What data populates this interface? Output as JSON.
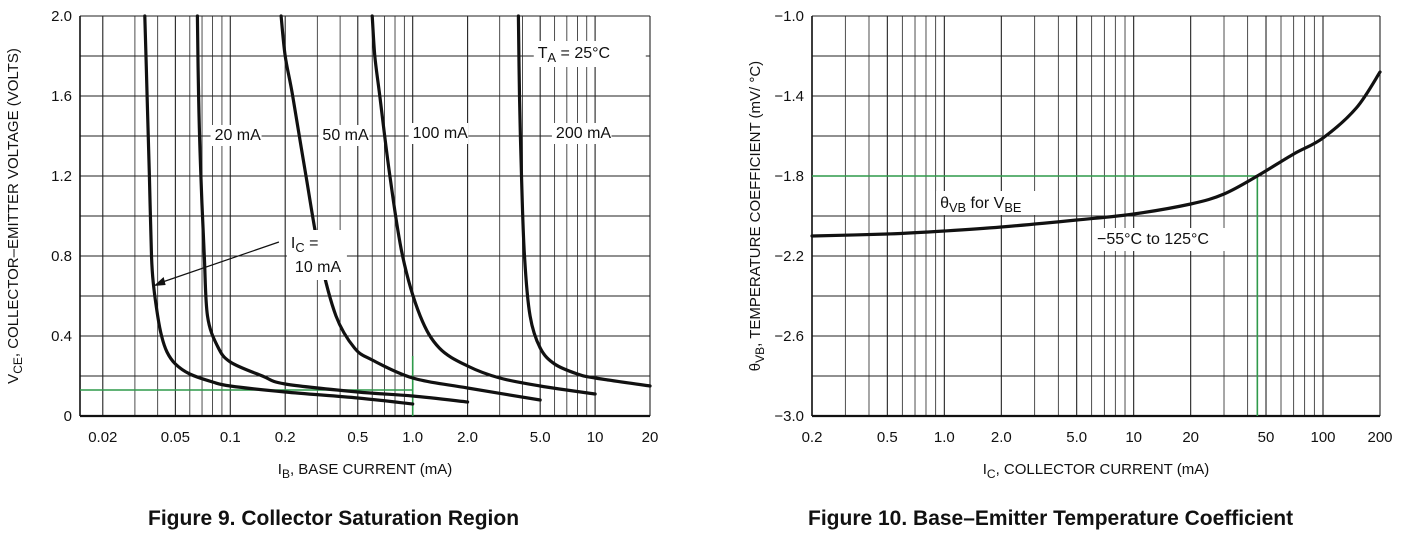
{
  "chart_data": [
    {
      "type": "line",
      "title": "Figure 9. Collector Saturation Region",
      "xlabel": {
        "main": "I",
        "sub": "B",
        "rest": ", BASE CURRENT (mA)"
      },
      "ylabel": {
        "main": "V",
        "sub": "CE",
        "rest": ", COLLECTOR–EMITTER VOLTAGE (VOLTS)"
      },
      "x_scale": "log",
      "xlim": [
        0.015,
        20
      ],
      "ylim": [
        0,
        2.0
      ],
      "x_tick_labels": [
        [
          "0.02",
          0.02
        ],
        [
          "0.05",
          0.05
        ],
        [
          "0.1",
          0.1
        ],
        [
          "0.2",
          0.2
        ],
        [
          "0.5",
          0.5
        ],
        [
          "1.0",
          1.0
        ],
        [
          "2.0",
          2.0
        ],
        [
          "5.0",
          5.0
        ],
        [
          "10",
          10
        ],
        [
          "20",
          20
        ]
      ],
      "y_tick_labels": [
        [
          "0",
          0
        ],
        [
          "0.4",
          0.4
        ],
        [
          "0.8",
          0.8
        ],
        [
          "1.2",
          1.2
        ],
        [
          "1.6",
          1.6
        ],
        [
          "2.0",
          2.0
        ]
      ],
      "grid": true,
      "annotation": {
        "main": "T",
        "sub": "A",
        "rest": " = 25°C"
      },
      "arrow_label": {
        "line1_main": "I",
        "line1_sub": "C",
        "line1_rest": " =",
        "line2": "10 mA"
      },
      "series": [
        {
          "name": "10 mA",
          "points": [
            [
              0.034,
              2.0
            ],
            [
              0.035,
              1.6
            ],
            [
              0.036,
              1.2
            ],
            [
              0.037,
              0.8
            ],
            [
              0.038,
              0.65
            ],
            [
              0.04,
              0.5
            ],
            [
              0.042,
              0.4
            ],
            [
              0.045,
              0.32
            ],
            [
              0.05,
              0.26
            ],
            [
              0.06,
              0.21
            ],
            [
              0.08,
              0.17
            ],
            [
              0.1,
              0.15
            ],
            [
              0.2,
              0.12
            ],
            [
              0.5,
              0.09
            ],
            [
              1.0,
              0.06
            ]
          ]
        },
        {
          "name": "20 mA",
          "points": [
            [
              0.066,
              2.0
            ],
            [
              0.067,
              1.6
            ],
            [
              0.069,
              1.2
            ],
            [
              0.072,
              0.8
            ],
            [
              0.075,
              0.5
            ],
            [
              0.085,
              0.35
            ],
            [
              0.1,
              0.27
            ],
            [
              0.15,
              0.2
            ],
            [
              0.2,
              0.16
            ],
            [
              0.5,
              0.12
            ],
            [
              1.0,
              0.1
            ],
            [
              2.0,
              0.07
            ]
          ]
        },
        {
          "name": "50 mA",
          "points": [
            [
              0.19,
              2.0
            ],
            [
              0.2,
              1.8
            ],
            [
              0.22,
              1.6
            ],
            [
              0.26,
              1.2
            ],
            [
              0.31,
              0.8
            ],
            [
              0.38,
              0.5
            ],
            [
              0.48,
              0.34
            ],
            [
              0.6,
              0.28
            ],
            [
              1.0,
              0.19
            ],
            [
              2.0,
              0.14
            ],
            [
              5.0,
              0.08
            ]
          ]
        },
        {
          "name": "100 mA",
          "points": [
            [
              0.6,
              2.0
            ],
            [
              0.62,
              1.8
            ],
            [
              0.66,
              1.6
            ],
            [
              0.75,
              1.2
            ],
            [
              0.88,
              0.8
            ],
            [
              1.1,
              0.5
            ],
            [
              1.4,
              0.34
            ],
            [
              2.0,
              0.25
            ],
            [
              3.0,
              0.19
            ],
            [
              5.0,
              0.15
            ],
            [
              10.0,
              0.11
            ]
          ]
        },
        {
          "name": "200 mA",
          "points": [
            [
              3.8,
              2.0
            ],
            [
              3.85,
              1.6
            ],
            [
              3.95,
              1.2
            ],
            [
              4.1,
              0.8
            ],
            [
              4.4,
              0.5
            ],
            [
              5.0,
              0.34
            ],
            [
              6.0,
              0.26
            ],
            [
              8.0,
              0.21
            ],
            [
              10.0,
              0.19
            ],
            [
              20.0,
              0.15
            ]
          ]
        }
      ],
      "guide": {
        "color": "#2e9a4a",
        "x": 1.0,
        "y": 0.13,
        "y_top": 0.3
      }
    },
    {
      "type": "line",
      "title": "Figure 10. Base–Emitter Temperature Coefficient",
      "xlabel": {
        "main": "I",
        "sub": "C",
        "rest": ", COLLECTOR CURRENT (mA)"
      },
      "ylabel": {
        "main": "θ",
        "sub": "VB",
        "rest": ", TEMPERATURE COEFFICIENT (mV/ °C)"
      },
      "x_scale": "log",
      "xlim": [
        0.2,
        200
      ],
      "ylim": [
        -3.0,
        -1.0
      ],
      "x_tick_labels": [
        [
          "0.2",
          0.2
        ],
        [
          "0.5",
          0.5
        ],
        [
          "1.0",
          1.0
        ],
        [
          "2.0",
          2.0
        ],
        [
          "5.0",
          5.0
        ],
        [
          "10",
          10
        ],
        [
          "20",
          20
        ],
        [
          "50",
          50
        ],
        [
          "100",
          100
        ],
        [
          "200",
          200
        ]
      ],
      "y_tick_labels": [
        [
          "−3.0",
          -3.0
        ],
        [
          "−2.6",
          -2.6
        ],
        [
          "−2.2",
          -2.2
        ],
        [
          "−1.8",
          -1.8
        ],
        [
          "−1.4",
          -1.4
        ],
        [
          "−1.0",
          -1.0
        ]
      ],
      "grid": true,
      "series_label": {
        "main": "θ",
        "sub": "VB",
        "mid": " for V",
        "sub2": "BE"
      },
      "range_label": "−55°C to 125°C",
      "series": [
        {
          "name": "θVB for VBE",
          "points": [
            [
              0.2,
              -2.1
            ],
            [
              0.5,
              -2.09
            ],
            [
              1.0,
              -2.075
            ],
            [
              2.0,
              -2.055
            ],
            [
              5.0,
              -2.02
            ],
            [
              10,
              -1.99
            ],
            [
              20,
              -1.94
            ],
            [
              30,
              -1.89
            ],
            [
              45,
              -1.8
            ],
            [
              70,
              -1.69
            ],
            [
              100,
              -1.61
            ],
            [
              150,
              -1.46
            ],
            [
              200,
              -1.28
            ]
          ]
        }
      ],
      "guide": {
        "color": "#2e9a4a",
        "x": 45,
        "y": -1.8
      }
    }
  ]
}
